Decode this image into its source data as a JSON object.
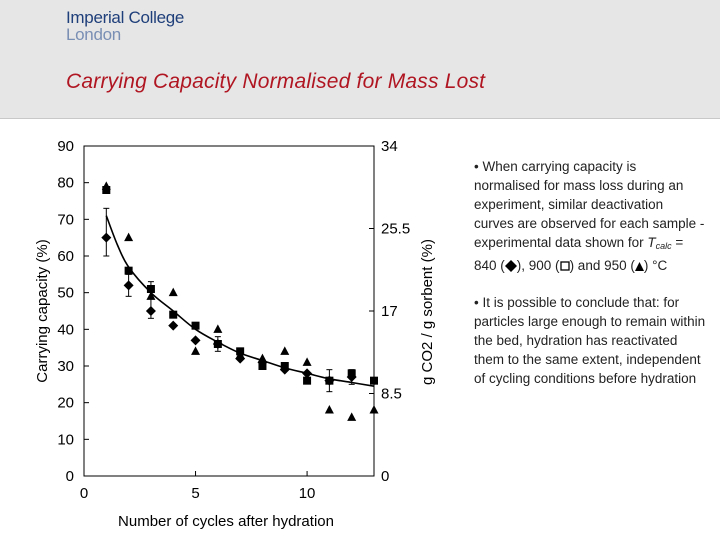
{
  "header": {
    "logo_line1": "Imperial College",
    "logo_line2": "London",
    "slide_title": "Carrying Capacity Normalised for Mass Lost"
  },
  "notes": {
    "bullet1_intro": "• When carrying capacity is normalised for mass loss during an experiment, similar deactivation curves are observed for each sample - experimental data shown for",
    "t_symbol": "T",
    "t_subscript": "calc",
    "temp1": "= 840 (",
    "temp2": "), 900 (",
    "temp3": ") and 950 (",
    "temp_unit": ") °C",
    "bullet2": "• It is possible to conclude that: for particles large enough to remain within the bed, hydration has reactivated them to the same extent, independent of cycling conditions before hydration"
  },
  "colors": {
    "title": "#b01622",
    "logo": "#1f3f7a",
    "markers": "#000000"
  },
  "chart_data": {
    "type": "scatter",
    "xlabel": "Number of cycles after hydration",
    "ylabel": "Carrying capacity (%)",
    "y2label": "g CO2 / g sorbent (%)",
    "xlim": [
      0,
      13
    ],
    "ylim": [
      0,
      90
    ],
    "x_ticks": [
      0,
      5,
      10
    ],
    "y_ticks": [
      0,
      10,
      20,
      30,
      40,
      50,
      60,
      70,
      80,
      90
    ],
    "y2_ticks": [
      "34",
      "25.5",
      "17",
      "8.5",
      "0"
    ],
    "y2_tick_values": [
      90,
      67.5,
      45,
      22.5,
      0
    ],
    "grid": false,
    "legend": "none",
    "series": [
      {
        "marker": "diamond",
        "x": [
          1,
          2,
          3,
          4,
          5,
          6,
          7,
          8,
          9,
          10,
          11,
          12
        ],
        "y": [
          65,
          52,
          45,
          41,
          37,
          36,
          32,
          31,
          29,
          28,
          26,
          27
        ]
      },
      {
        "marker": "square",
        "x": [
          1,
          2,
          3,
          4,
          5,
          6,
          7,
          8,
          9,
          10,
          11,
          12,
          13
        ],
        "y": [
          78,
          56,
          51,
          44,
          41,
          36,
          34,
          30,
          30,
          26,
          26,
          28,
          26
        ]
      },
      {
        "marker": "triangle",
        "x": [
          1,
          2,
          3,
          4,
          5,
          6,
          7,
          8,
          9,
          10,
          11,
          12,
          13
        ],
        "y": [
          79,
          65,
          49,
          50,
          34,
          40,
          33,
          32,
          34,
          31,
          18,
          16,
          18
        ]
      }
    ],
    "fit_curve": {
      "x": [
        1,
        1.5,
        2,
        3,
        4,
        5,
        6,
        7,
        8,
        9,
        10,
        11,
        12,
        13
      ],
      "y": [
        71,
        63,
        57,
        50,
        45,
        40,
        36.5,
        33.5,
        31.5,
        29.5,
        28,
        26.5,
        25.5,
        24.5
      ]
    },
    "error_bars": [
      {
        "x": 1,
        "low": 60,
        "high": 73
      },
      {
        "x": 2,
        "low": 49,
        "high": 55
      },
      {
        "x": 3,
        "low": 43,
        "high": 53
      },
      {
        "x": 6,
        "low": 34,
        "high": 38
      },
      {
        "x": 11,
        "low": 23,
        "high": 29
      },
      {
        "x": 12,
        "low": 25,
        "high": 29
      }
    ]
  }
}
